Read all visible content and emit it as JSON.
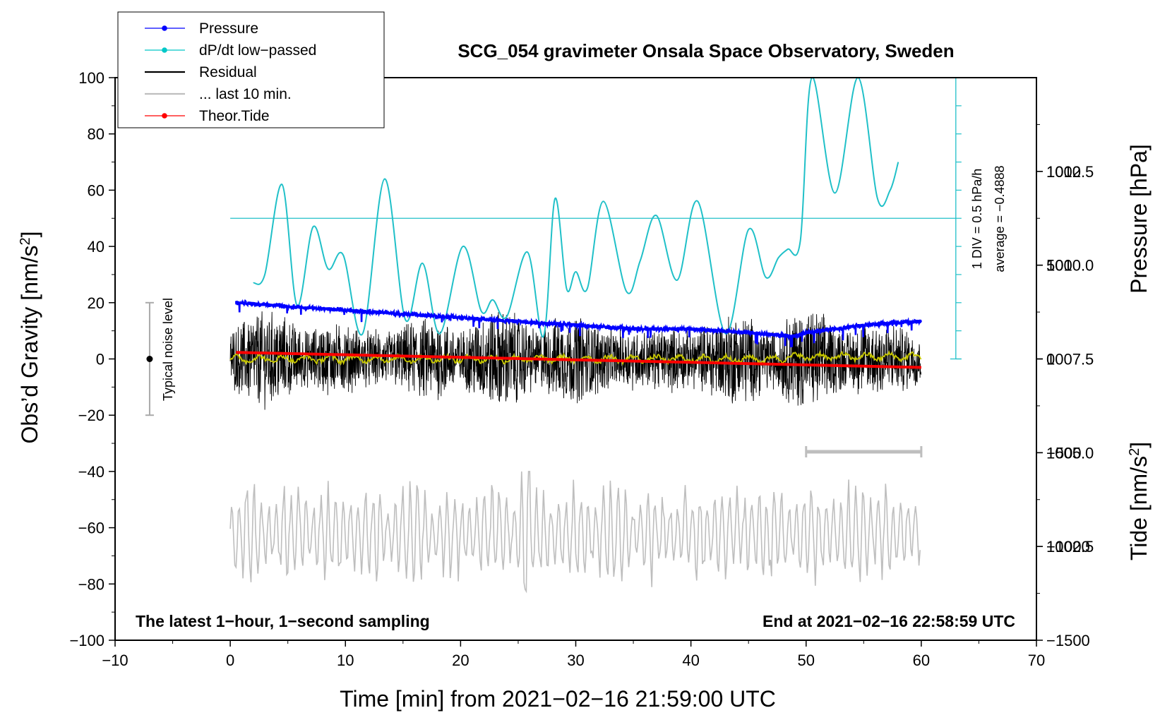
{
  "chart_data": {
    "type": "line",
    "title": "SCG_054 gravimeter Onsala Space Observatory, Sweden",
    "xlabel": "Time [min] from 2021−02−16 21:59:00 UTC",
    "ylabel_left": "Obs’d Gravity [nm/s",
    "ylabel_left_sup": "2",
    "ylabel_left_close": "]",
    "ylabel_right_pressure": "Pressure [hPa]",
    "ylabel_right_tide": "Tide [nm/s",
    "ylabel_right_tide_sup": "2",
    "ylabel_right_tide_close": "]",
    "xlim": [
      -10,
      70
    ],
    "ylim": [
      -100,
      100
    ],
    "pressure_lim": [
      1000,
      1015
    ],
    "tide_lim": [
      -1500,
      1500
    ],
    "x_ticks": [
      -10,
      0,
      10,
      20,
      30,
      40,
      50,
      60,
      70
    ],
    "x_tick_labels": [
      "−10",
      "0",
      "10",
      "20",
      "30",
      "40",
      "50",
      "60",
      "70"
    ],
    "y_ticks": [
      -100,
      -80,
      -60,
      -40,
      -20,
      0,
      20,
      40,
      60,
      80,
      100
    ],
    "y_tick_labels": [
      "−100",
      "−80",
      "−60",
      "−40",
      "−20",
      "0",
      "20",
      "40",
      "60",
      "80",
      "100"
    ],
    "pressure_ticks": [
      1002.5,
      1005.0,
      1007.5,
      1010.0,
      1012.5
    ],
    "pressure_tick_labels": [
      "1002.5",
      "1005.0",
      "1007.5",
      "1010.0",
      "1012.5"
    ],
    "tide_ticks": [
      -1500,
      -1000,
      -500,
      0,
      500,
      1000
    ],
    "tide_tick_labels": [
      "−1500",
      "−1000",
      "−500",
      "0",
      "500",
      "1000"
    ],
    "annotation_left": "The latest 1−hour, 1−second sampling",
    "annotation_right": "End at 2021−02−16 22:58:59 UTC",
    "noise_label": "Typical noise level",
    "noise_bar": {
      "x": -7,
      "y_low": -20,
      "y_high": 20,
      "center": 0
    },
    "dpdt_scale_label": "1 DIV = 0.5 hPa/h",
    "dpdt_average_label": "average = −0.4888",
    "dpdt_axis": {
      "x": 63,
      "y_min": 0,
      "y_max": 100,
      "baseline_y": 50
    },
    "last10_bar": {
      "x_start": 50,
      "x_end": 60,
      "y": -33
    },
    "legend": [
      {
        "label": "Pressure",
        "color": "#0000ff",
        "marker": true
      },
      {
        "label": "dP/dt low−passed",
        "color": "#00c8c8",
        "marker": true
      },
      {
        "label": "Residual",
        "color": "#000000",
        "marker": false
      },
      {
        "label": "... last 10 min.",
        "color": "#bebebe",
        "marker": false
      },
      {
        "label": "Theor.Tide",
        "color": "#ff0000",
        "marker": true
      }
    ],
    "series": [
      {
        "name": "Pressure",
        "color": "#0000ff",
        "axis": "pressure_hPa",
        "x": [
          0.5,
          5,
          10,
          15,
          20,
          25,
          30,
          35,
          40,
          45,
          49,
          50,
          55,
          60
        ],
        "y": [
          1009.0,
          1008.9,
          1008.8,
          1008.7,
          1008.6,
          1008.5,
          1008.4,
          1008.3,
          1008.3,
          1008.2,
          1008.1,
          1008.2,
          1008.4,
          1008.5
        ]
      },
      {
        "name": "dP/dt low−passed",
        "color": "#20c0c8",
        "axis": "gravity_scaled",
        "x": [
          2,
          3,
          4.5,
          5.8,
          7.2,
          8.5,
          9.8,
          11.5,
          13.4,
          15.2,
          16.7,
          18.2,
          20.2,
          21.8,
          22.8,
          24.0,
          25.8,
          27.2,
          28.2,
          29.2,
          30.0,
          31.0,
          32.4,
          34.4,
          35.6,
          37.0,
          38.8,
          40.6,
          43.0,
          45.0,
          46.5,
          47.6,
          48.4,
          49.5,
          50.5,
          52.5,
          54.5,
          56.2,
          57.3,
          58.0
        ],
        "y": [
          27,
          30,
          62,
          19,
          47,
          32,
          37,
          9,
          64,
          14,
          34,
          9,
          40,
          17,
          21,
          15,
          38,
          8,
          57,
          25,
          31,
          25,
          56,
          24,
          35,
          51,
          28,
          56,
          9,
          46,
          29,
          36,
          39,
          42,
          100,
          59,
          100,
          57,
          60,
          70
        ]
      },
      {
        "name": "Residual",
        "color": "#000000",
        "axis": "gravity",
        "amplitude_range": [
          -23,
          22
        ],
        "x_range": [
          0,
          60
        ]
      },
      {
        "name": "Residual smoothed",
        "color": "#c8c800",
        "axis": "gravity",
        "x": [
          0,
          10,
          20,
          30,
          40,
          50,
          60
        ],
        "y": [
          0,
          0,
          0,
          0,
          0,
          0,
          0
        ]
      },
      {
        "name": "... last 10 min.",
        "color": "#bebebe",
        "axis": "gravity",
        "y_center": -62,
        "amplitude_range": [
          -85,
          -40
        ],
        "x_range": [
          0,
          60
        ]
      },
      {
        "name": "Theor.Tide",
        "color": "#ff0000",
        "axis": "tide",
        "x": [
          0.5,
          60
        ],
        "y": [
          35,
          -45
        ]
      }
    ],
    "grid": false,
    "legend_position": "top-left"
  }
}
